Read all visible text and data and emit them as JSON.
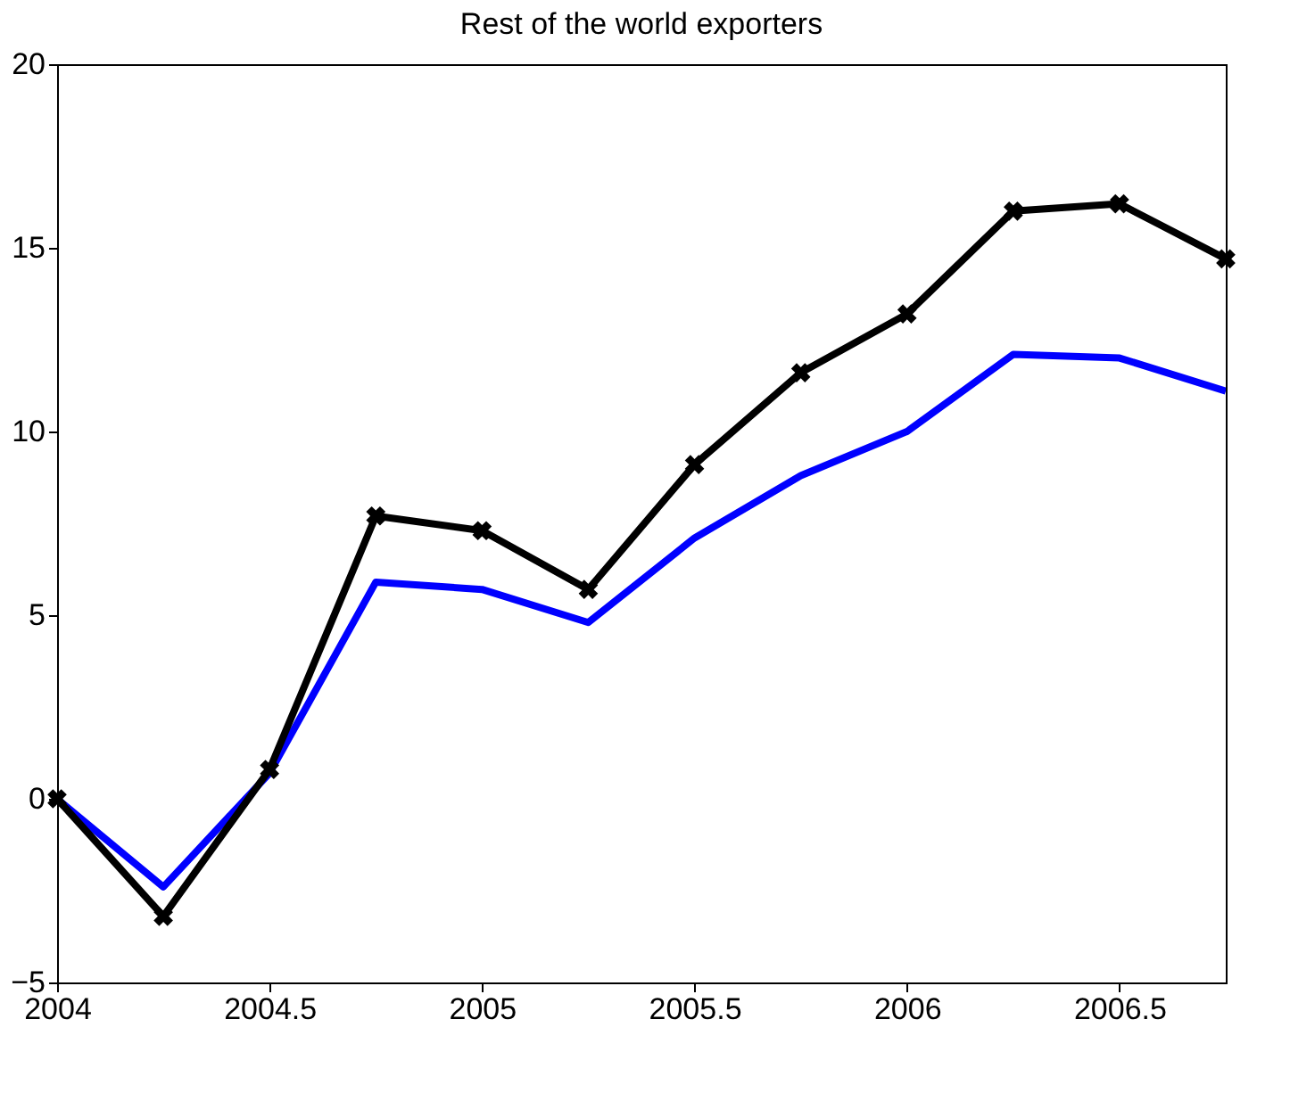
{
  "chart_data": {
    "type": "line",
    "title": "Rest of the world exporters",
    "x": [
      2004,
      2004.25,
      2004.5,
      2004.75,
      2005,
      2005.25,
      2005.5,
      2005.75,
      2006,
      2006.25,
      2006.5,
      2006.75
    ],
    "series": [
      {
        "color": "#0000ff",
        "marker": "none",
        "values": [
          0,
          -2.4,
          0.7,
          5.9,
          5.7,
          4.8,
          7.1,
          8.8,
          10.0,
          12.1,
          12.0,
          11.1
        ]
      },
      {
        "color": "#000000",
        "marker": "cross",
        "values": [
          0,
          -3.2,
          0.8,
          7.7,
          7.3,
          5.7,
          9.1,
          11.6,
          13.2,
          16.0,
          16.2,
          14.7
        ]
      }
    ],
    "xlim": [
      2004,
      2006.75
    ],
    "xticks": [
      2004,
      2004.5,
      2005,
      2005.5,
      2006,
      2006.5
    ],
    "ylim": [
      -5,
      20
    ],
    "yticks": [
      -5,
      0,
      5,
      10,
      15,
      20
    ],
    "grid": false,
    "line_style": "solid"
  }
}
